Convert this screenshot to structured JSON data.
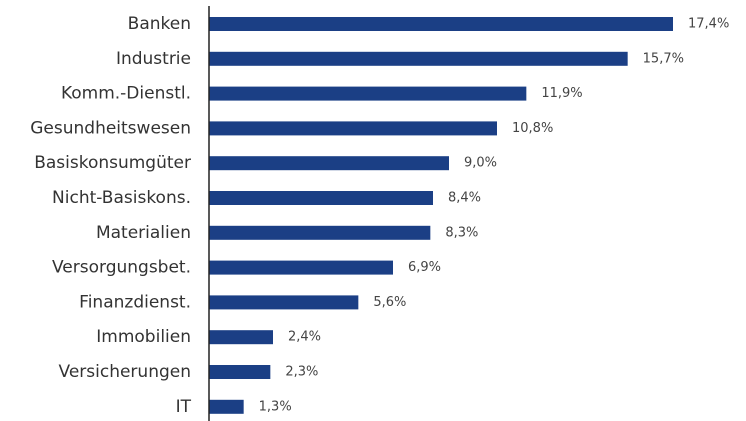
{
  "chart_data": {
    "type": "bar",
    "orientation": "horizontal",
    "categories": [
      "Banken",
      "Industrie",
      "Komm.-Dienstl.",
      "Gesundheitswesen",
      "Basiskonsumgüter",
      "Nicht-Basiskons.",
      "Materialien",
      "Versorgungsbet.",
      "Finanzdienst.",
      "Immobilien",
      "Versicherungen",
      "IT"
    ],
    "values": [
      17.4,
      15.7,
      11.9,
      10.8,
      9.0,
      8.4,
      8.3,
      6.9,
      5.6,
      2.4,
      2.3,
      1.3
    ],
    "value_labels": [
      "17,4%",
      "15,7%",
      "11,9%",
      "10,8%",
      "9,0%",
      "8,4%",
      "8,3%",
      "6,9%",
      "5,6%",
      "2,4%",
      "2,3%",
      "1,3%"
    ],
    "title": "",
    "xlabel": "",
    "ylabel": "",
    "xlim": [
      0,
      18
    ],
    "grid": false,
    "legend": "none",
    "bar_color": "#1b3f85",
    "axis_color": "#222222"
  }
}
